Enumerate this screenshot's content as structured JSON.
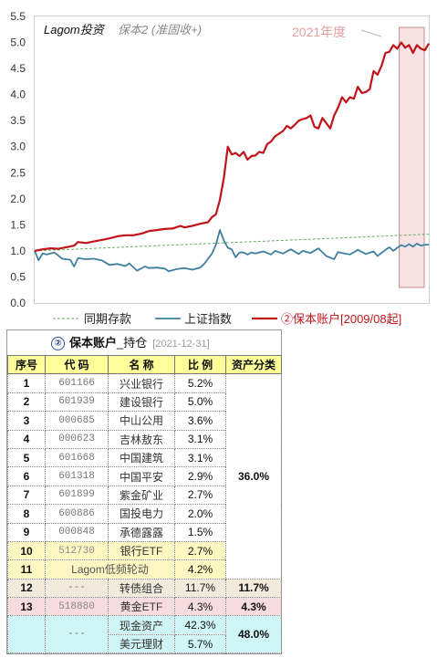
{
  "chart_data": {
    "type": "line",
    "title": "Lagom投资",
    "subtitle": "保本2 (准固收+)",
    "annotation": "2021年度",
    "xlabel": "",
    "ylabel": "",
    "ylim": [
      0.0,
      5.5
    ],
    "yticks": [
      "0.0",
      "0.5",
      "1.0",
      "1.5",
      "2.0",
      "2.5",
      "3.0",
      "3.5",
      "4.0",
      "4.5",
      "5.0",
      "5.5"
    ],
    "x_range": [
      0,
      100
    ],
    "highlight_range": [
      92.5,
      100
    ],
    "grid": false,
    "legend_position": "bottom",
    "series": [
      {
        "name": "同期存款",
        "color": "#6aaa6a",
        "style": "dashed",
        "x": [
          0,
          100
        ],
        "y": [
          1.0,
          1.32
        ]
      },
      {
        "name": "上证指数",
        "color": "#3f7f9f",
        "style": "solid",
        "x": [
          0,
          1,
          2,
          3,
          5,
          7,
          9,
          10,
          11,
          13,
          15,
          17,
          19,
          21,
          23,
          24,
          26,
          28,
          29,
          31,
          33,
          34,
          36,
          38,
          40,
          42,
          43,
          44,
          45,
          46,
          47,
          48,
          49,
          50,
          51,
          52,
          53,
          54,
          55,
          56,
          58,
          60,
          61,
          63,
          65,
          67,
          68,
          70,
          72,
          74,
          76,
          77,
          78,
          80,
          82,
          84,
          86,
          87,
          89,
          90,
          91,
          92,
          93,
          94,
          95,
          96,
          97,
          98,
          99,
          100
        ],
        "y": [
          1.0,
          0.82,
          0.95,
          0.93,
          0.97,
          0.85,
          0.83,
          0.7,
          0.86,
          0.84,
          0.85,
          0.82,
          0.73,
          0.75,
          0.71,
          0.76,
          0.62,
          0.7,
          0.67,
          0.68,
          0.66,
          0.61,
          0.65,
          0.67,
          0.64,
          0.68,
          0.75,
          0.85,
          0.95,
          1.12,
          1.4,
          1.2,
          1.06,
          1.03,
          0.88,
          0.97,
          0.97,
          0.93,
          0.97,
          0.95,
          0.99,
          0.93,
          1.0,
          0.95,
          1.03,
          0.94,
          1.0,
          0.96,
          1.05,
          0.9,
          0.84,
          0.98,
          0.96,
          0.93,
          1.02,
          0.94,
          0.99,
          0.9,
          1.02,
          1.07,
          1.0,
          1.06,
          1.11,
          1.08,
          1.13,
          1.08,
          1.14,
          1.1,
          1.12,
          1.12
        ]
      },
      {
        "name": "②保本账户[2009/08起]",
        "color": "#c0141a",
        "style": "solid",
        "x": [
          0,
          2,
          4,
          6,
          8,
          10,
          11,
          13,
          15,
          17,
          19,
          21,
          23,
          25,
          27,
          29,
          31,
          33,
          35,
          37,
          38,
          40,
          42,
          44,
          45,
          46,
          47,
          48,
          49,
          50,
          51,
          52,
          53,
          54,
          55,
          56,
          57,
          58,
          59,
          60,
          61,
          62,
          63,
          64,
          65,
          66,
          67,
          68,
          69,
          70,
          71,
          72,
          73,
          74,
          75,
          76,
          77,
          78,
          79,
          80,
          81,
          82,
          83,
          84,
          85,
          86,
          87,
          88,
          89,
          90,
          91,
          92,
          93,
          94,
          95,
          96,
          97,
          98,
          99,
          100
        ],
        "y": [
          1.0,
          1.03,
          1.05,
          1.04,
          1.07,
          1.1,
          1.17,
          1.15,
          1.18,
          1.21,
          1.24,
          1.28,
          1.3,
          1.3,
          1.33,
          1.38,
          1.4,
          1.42,
          1.43,
          1.48,
          1.45,
          1.48,
          1.52,
          1.55,
          1.65,
          1.7,
          1.98,
          2.4,
          3.0,
          2.85,
          2.88,
          2.82,
          2.9,
          2.75,
          2.82,
          2.83,
          2.9,
          2.88,
          3.05,
          3.1,
          3.2,
          3.25,
          3.3,
          3.4,
          3.35,
          3.42,
          3.5,
          3.53,
          3.55,
          3.6,
          3.38,
          3.35,
          3.55,
          3.45,
          3.35,
          3.6,
          3.75,
          3.95,
          3.85,
          3.95,
          3.92,
          4.15,
          4.03,
          4.05,
          4.1,
          4.45,
          4.38,
          4.55,
          4.8,
          4.82,
          4.95,
          4.88,
          5.0,
          4.9,
          4.95,
          4.8,
          4.95,
          4.88,
          4.85,
          4.98
        ]
      }
    ]
  },
  "holdings": {
    "badge": "②",
    "title": "保本账户",
    "subtitle": "_持仓",
    "date": "[2021-12-31]",
    "headers": [
      "序号",
      "代 码",
      "名 称",
      "比 例",
      "资产分类"
    ],
    "rows": [
      {
        "no": "1",
        "code": "601166",
        "name": "兴业银行",
        "ratio": "5.2%"
      },
      {
        "no": "2",
        "code": "601939",
        "name": "建设银行",
        "ratio": "5.0%"
      },
      {
        "no": "3",
        "code": "000685",
        "name": "中山公用",
        "ratio": "3.6%"
      },
      {
        "no": "4",
        "code": "000623",
        "name": "吉林敖东",
        "ratio": "3.1%"
      },
      {
        "no": "5",
        "code": "601668",
        "name": "中国建筑",
        "ratio": "3.1%"
      },
      {
        "no": "6",
        "code": "601318",
        "name": "中国平安",
        "ratio": "2.9%"
      },
      {
        "no": "7",
        "code": "601899",
        "name": "紫金矿业",
        "ratio": "2.7%"
      },
      {
        "no": "8",
        "code": "600886",
        "name": "国投电力",
        "ratio": "2.0%"
      },
      {
        "no": "9",
        "code": "000848",
        "name": "承德露露",
        "ratio": "1.5%"
      },
      {
        "no": "10",
        "code": "512730",
        "name": "银行ETF",
        "ratio": "2.7%"
      },
      {
        "no": "11",
        "code_name": "Lagom低频轮动",
        "ratio": "4.2%"
      },
      {
        "no": "12",
        "code": "---",
        "name": "转债组合",
        "ratio": "11.7%"
      },
      {
        "no": "13",
        "code": "518880",
        "name": "黄金ETF",
        "ratio": "4.3%"
      },
      {
        "no": "",
        "code": "---",
        "name": "现金资产",
        "ratio": "42.3%"
      },
      {
        "no": "",
        "code": "",
        "name": "美元理财",
        "ratio": "5.7%"
      }
    ],
    "categories": {
      "stocks": "36.0%",
      "bonds": "11.7%",
      "gold": "4.3%",
      "cash": "48.0%"
    }
  }
}
